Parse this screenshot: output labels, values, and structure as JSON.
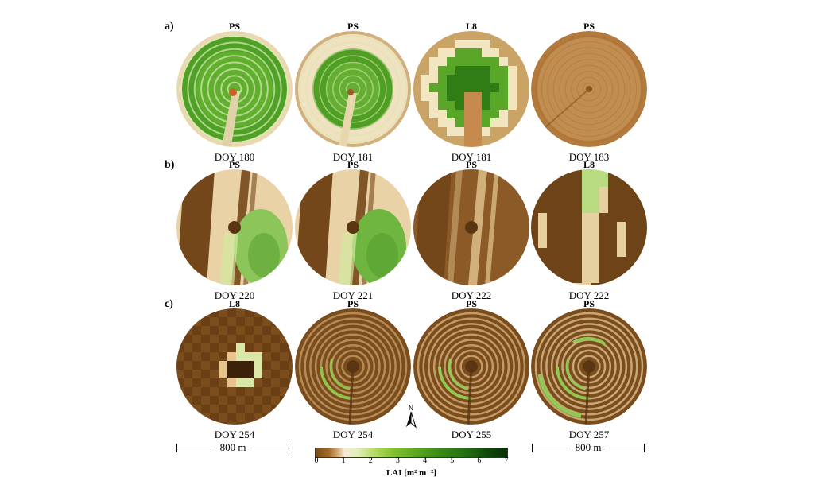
{
  "rows": [
    {
      "label": "a)",
      "panels": [
        {
          "sensor": "PS",
          "doy": "DOY 180",
          "pattern": "green-rings",
          "palette": [
            "#3f8d1e",
            "#4ea125",
            "#6cb936",
            "#e8d9b0"
          ]
        },
        {
          "sensor": "PS",
          "doy": "DOY 181",
          "pattern": "green-rings-pale",
          "palette": [
            "#4f9f25",
            "#7ac040",
            "#f0e2c1",
            "#c59c63"
          ]
        },
        {
          "sensor": "L8",
          "doy": "DOY 181",
          "pattern": "pixel-green",
          "palette": [
            "#2f7d14",
            "#5aa628",
            "#e7d49f",
            "#c9a466"
          ]
        },
        {
          "sensor": "PS",
          "doy": "DOY 183",
          "pattern": "brown",
          "palette": [
            "#b37a3d",
            "#c99a5e",
            "#a06629",
            "#8b5420"
          ]
        }
      ]
    },
    {
      "label": "b)",
      "panels": [
        {
          "sensor": "PS",
          "doy": "DOY 220",
          "pattern": "strips-green",
          "palette": [
            "#74471a",
            "#e9d2a5",
            "#8cc65a",
            "#5a3512"
          ]
        },
        {
          "sensor": "PS",
          "doy": "DOY 221",
          "pattern": "strips-green",
          "palette": [
            "#74471a",
            "#e9d2a5",
            "#6fb640",
            "#5a3512"
          ]
        },
        {
          "sensor": "PS",
          "doy": "DOY 222",
          "pattern": "strips-brown",
          "palette": [
            "#74471a",
            "#d9b985",
            "#8b5a26",
            "#5a3512"
          ]
        },
        {
          "sensor": "L8",
          "doy": "DOY 222",
          "pattern": "pixel-strips",
          "palette": [
            "#6e4317",
            "#e7d0a0",
            "#b9db82",
            "#5a3512"
          ]
        }
      ]
    },
    {
      "label": "c)",
      "panels": [
        {
          "sensor": "L8",
          "doy": "DOY 254",
          "pattern": "pixel-center",
          "palette": [
            "#7b4c1c",
            "#6a3f14",
            "#d9e8a8",
            "#e6c48c"
          ]
        },
        {
          "sensor": "PS",
          "doy": "DOY 254",
          "pattern": "brown-rings",
          "palette": [
            "#7b4c1c",
            "#caa16a",
            "#8ec54a",
            "#5a3512"
          ]
        },
        {
          "sensor": "PS",
          "doy": "DOY 255",
          "pattern": "brown-rings",
          "palette": [
            "#7b4c1c",
            "#d9b580",
            "#93ca55",
            "#5a3512"
          ]
        },
        {
          "sensor": "PS",
          "doy": "DOY 257",
          "pattern": "brown-rings-green",
          "palette": [
            "#7b4c1c",
            "#e2c595",
            "#8fca52",
            "#5a3512"
          ]
        }
      ]
    }
  ],
  "scalebars": [
    "800 m",
    "800 m"
  ],
  "north_label": "N",
  "colorbar": {
    "ticks": [
      "0",
      "1",
      "2",
      "3",
      "4",
      "5",
      "6",
      "7"
    ],
    "title": "LAI [m² m⁻²]"
  }
}
